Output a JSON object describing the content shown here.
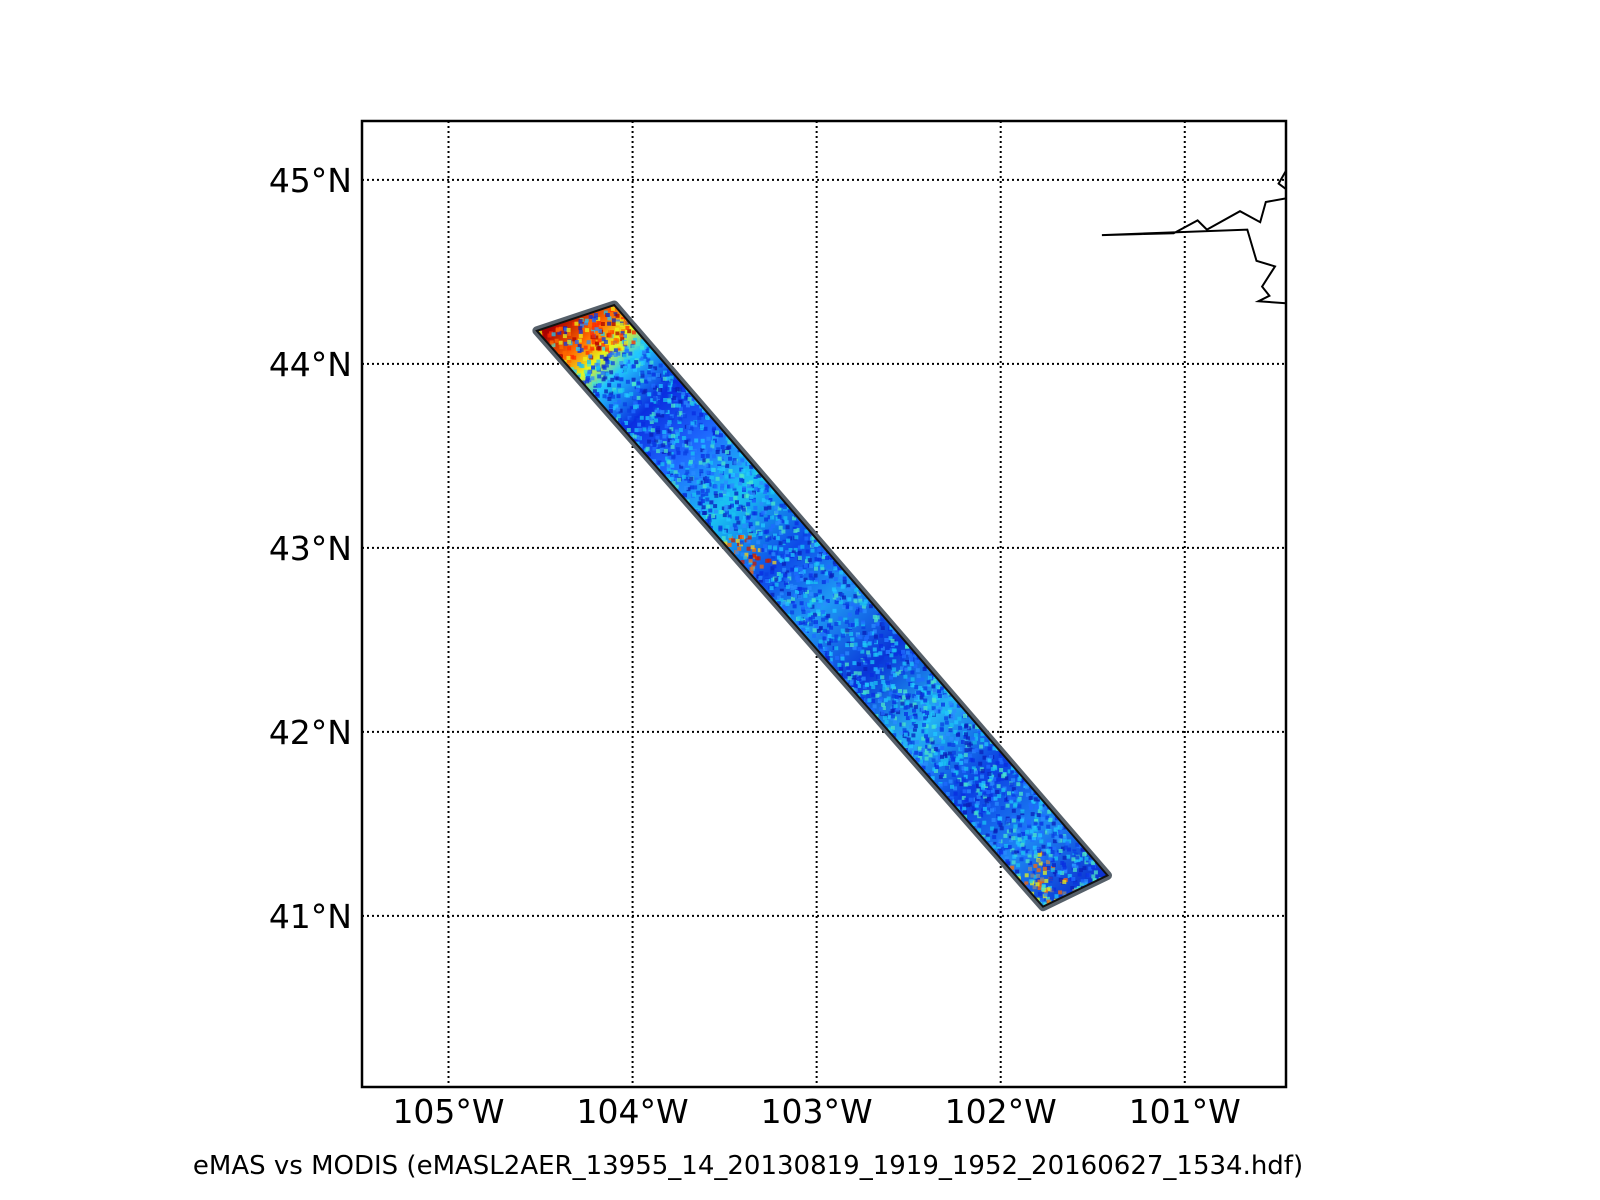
{
  "map": {
    "caption": "eMAS vs MODIS (eMASL2AER_13955_14_20130819_1919_1952_20160627_1534.hdf)",
    "lon_range": [
      -105.47,
      -100.45
    ],
    "lat_range": [
      40.07,
      45.32
    ],
    "meridians": [
      {
        "value": -105,
        "label": "105°W"
      },
      {
        "value": -104,
        "label": "104°W"
      },
      {
        "value": -103,
        "label": "103°W"
      },
      {
        "value": -102,
        "label": "102°W"
      },
      {
        "value": -101,
        "label": "101°W"
      }
    ],
    "parallels": [
      {
        "value": 45,
        "label": "45°N"
      },
      {
        "value": 44,
        "label": "44°N"
      },
      {
        "value": 43,
        "label": "43°N"
      },
      {
        "value": 42,
        "label": "42°N"
      },
      {
        "value": 41,
        "label": "41°N"
      }
    ],
    "grid": "dotted",
    "colormap": "jet",
    "swath_outline_color": "#56606a",
    "swath_corners": [
      {
        "lon": -104.52,
        "lat": 44.18
      },
      {
        "lon": -104.1,
        "lat": 44.32
      },
      {
        "lon": -101.42,
        "lat": 41.22
      },
      {
        "lon": -101.77,
        "lat": 41.05
      }
    ],
    "coastline": [
      {
        "lon": -100.45,
        "lat": 45.05
      },
      {
        "lon": -100.49,
        "lat": 44.98
      },
      {
        "lon": -100.45,
        "lat": 44.95
      },
      {
        "lon": -100.45,
        "lat": 44.9
      },
      {
        "lon": -100.56,
        "lat": 44.88
      },
      {
        "lon": -100.59,
        "lat": 44.77
      },
      {
        "lon": -100.7,
        "lat": 44.83
      },
      {
        "lon": -100.88,
        "lat": 44.73
      },
      {
        "lon": -100.93,
        "lat": 44.78
      },
      {
        "lon": -101.06,
        "lat": 44.71
      },
      {
        "lon": -101.45,
        "lat": 44.7
      },
      {
        "lon": -100.66,
        "lat": 44.73
      },
      {
        "lon": -100.61,
        "lat": 44.56
      },
      {
        "lon": -100.51,
        "lat": 44.53
      },
      {
        "lon": -100.58,
        "lat": 44.42
      },
      {
        "lon": -100.54,
        "lat": 44.37
      },
      {
        "lon": -100.6,
        "lat": 44.34
      },
      {
        "lon": -100.45,
        "lat": 44.33
      }
    ]
  }
}
